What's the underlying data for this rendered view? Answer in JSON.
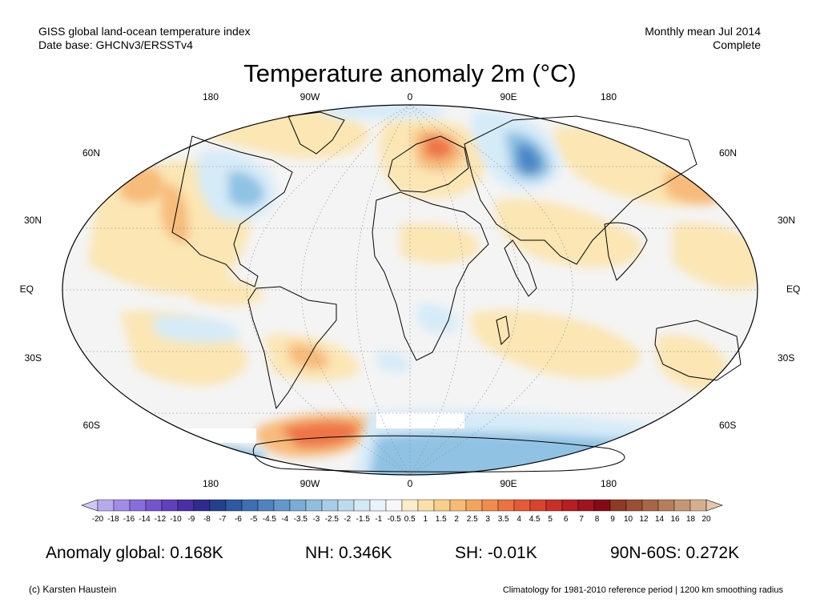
{
  "header": {
    "line1_left": "GISS global land-ocean temperature index",
    "line2_left": "Date base: GHCNv3/ERSSTv4",
    "line1_right": "Monthly mean Jul 2014",
    "line2_right": "Complete"
  },
  "title": "Temperature anomaly 2m (°C)",
  "map": {
    "projection": "Robinson",
    "top_lon_labels": [
      "180",
      "90W",
      "0",
      "90E",
      "180"
    ],
    "bottom_lon_labels": [
      "180",
      "90W",
      "0",
      "90E",
      "180"
    ],
    "left_lat_labels": [
      "60N",
      "30N",
      "EQ",
      "30S",
      "60S"
    ],
    "right_lat_labels": [
      "60N",
      "30N",
      "EQ",
      "30S",
      "60S"
    ],
    "colors": {
      "neutral": "#f4f4f4",
      "warm_light": "#fbe6b4",
      "warm_mid": "#f7bb7a",
      "warm_strong": "#ee7447",
      "cool_light": "#d6ebf8",
      "cool_mid": "#8fc2e3",
      "cool_strong": "#4c86c6"
    }
  },
  "colorbar": {
    "labels": [
      "-20",
      "-18",
      "-16",
      "-14",
      "-12",
      "-10",
      "-9",
      "-8",
      "-7",
      "-6",
      "-5",
      "-4.5",
      "-4",
      "-3.5",
      "-3",
      "-2.5",
      "-2",
      "-1.5",
      "-1",
      "-0.5",
      "0.5",
      "1",
      "1.5",
      "2",
      "2.5",
      "3",
      "3.5",
      "4",
      "4.5",
      "5",
      "6",
      "7",
      "8",
      "9",
      "10",
      "12",
      "14",
      "16",
      "18",
      "20"
    ],
    "colors": [
      "#cfc8f6",
      "#b8a9ee",
      "#a08be6",
      "#8a6ddc",
      "#7554cf",
      "#6040bd",
      "#4a2fa8",
      "#2f2b8e",
      "#23408f",
      "#2c5aa3",
      "#3d6fb2",
      "#4f83bf",
      "#6398cb",
      "#79acd6",
      "#8fbedf",
      "#a5cde6",
      "#bcdcee",
      "#d3e9f6",
      "#e8f4fb",
      "#f7f7f7",
      "#fbedc8",
      "#fbe0a8",
      "#f9cf8a",
      "#f7bb72",
      "#f4a45e",
      "#f18c4e",
      "#ec7241",
      "#e45a36",
      "#d8432d",
      "#c92f27",
      "#b71f22",
      "#a1141d",
      "#860a16",
      "#8e3a24",
      "#9b4f33",
      "#a96646",
      "#b77e5c",
      "#c69774",
      "#d4b08f",
      "#e3c7a9"
    ]
  },
  "stats": {
    "global": "Anomaly global: 0.168K",
    "nh": "NH: 0.346K",
    "sh": "SH: -0.01K",
    "band": "90N-60S: 0.272K"
  },
  "footer": {
    "left": "(c) Karsten Haustein",
    "right": "Climatology for 1981-2010 reference period | 1200 km smoothing radius"
  }
}
